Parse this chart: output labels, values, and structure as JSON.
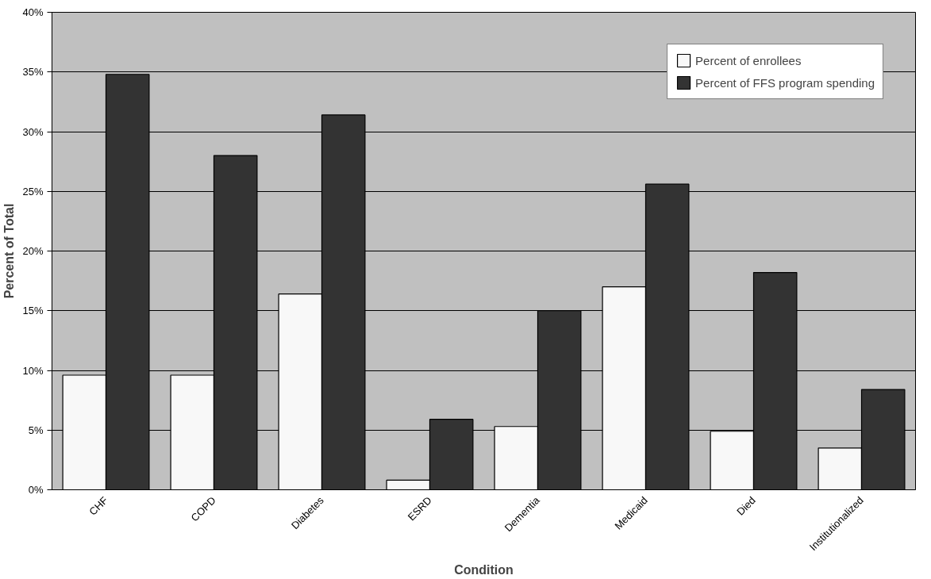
{
  "chart_data": {
    "type": "bar",
    "xlabel": "Condition",
    "ylabel": "Percent of Total",
    "categories": [
      "CHF",
      "COPD",
      "Diabetes",
      "ESRD",
      "Dementia",
      "Medicaid",
      "Died",
      "Institutionalized"
    ],
    "series": [
      {
        "name": "Percent of enrollees",
        "color": "#f8f8f8",
        "values": [
          9.6,
          9.6,
          16.4,
          0.8,
          5.3,
          17.0,
          4.9,
          3.5
        ]
      },
      {
        "name": "Percent of FFS program spending",
        "color": "#333333",
        "values": [
          34.8,
          28.0,
          31.4,
          5.9,
          15.0,
          25.6,
          18.2,
          8.4
        ]
      }
    ],
    "ylim": [
      0,
      40
    ],
    "yticks": [
      {
        "value": 0,
        "label": "0%"
      },
      {
        "value": 5,
        "label": "5%"
      },
      {
        "value": 10,
        "label": "10%"
      },
      {
        "value": 15,
        "label": "15%"
      },
      {
        "value": 20,
        "label": "20%"
      },
      {
        "value": 25,
        "label": "25%"
      },
      {
        "value": 30,
        "label": "30%"
      },
      {
        "value": 35,
        "label": "35%"
      },
      {
        "value": 40,
        "label": "40%"
      }
    ],
    "grid": "y",
    "legend": "top right"
  }
}
